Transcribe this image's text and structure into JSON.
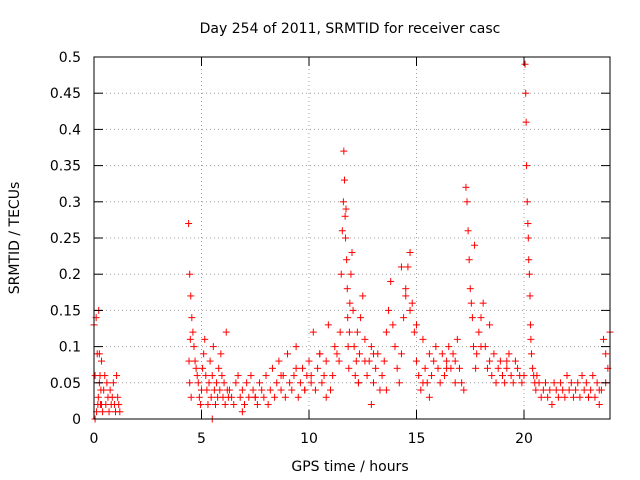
{
  "chart_data": {
    "type": "scatter",
    "title": "Day 254 of 2011, SRMTID for receiver casc",
    "xlabel": "GPS time / hours",
    "ylabel": "SRMTID / TECUs",
    "xlim": [
      0,
      24
    ],
    "ylim": [
      0,
      0.5
    ],
    "xticks": [
      0,
      5,
      10,
      15,
      20
    ],
    "xtick_labels": [
      "0",
      "5",
      "10",
      "15",
      "20"
    ],
    "yticks": [
      0,
      0.05,
      0.1,
      0.15,
      0.2,
      0.25,
      0.3,
      0.35,
      0.4,
      0.45,
      0.5
    ],
    "ytick_labels": [
      "0",
      "0.05",
      "0.1",
      "0.15",
      "0.2",
      "0.25",
      "0.3",
      "0.35",
      "0.4",
      "0.45",
      "0.5"
    ],
    "grid": true,
    "marker": "plus",
    "color": "#ff0000",
    "series": [
      {
        "name": "SRMTID",
        "x": [
          0.0,
          0.05,
          0.1,
          0.15,
          0.2,
          0.25,
          0.3,
          0.35,
          0.4,
          0.45,
          0.5,
          0.55,
          0.6,
          0.65,
          0.7,
          0.75,
          0.8,
          0.85,
          0.9,
          0.95,
          1.0,
          1.05,
          1.1,
          1.15,
          1.2,
          0.22,
          0.25,
          0.28,
          0.32,
          0.35,
          0.05,
          0.12,
          0.18,
          4.4,
          4.45,
          4.5,
          4.55,
          4.6,
          4.65,
          4.7,
          4.75,
          4.8,
          4.85,
          4.9,
          4.95,
          5.0,
          5.05,
          5.1,
          5.15,
          5.2,
          5.25,
          5.3,
          5.35,
          5.4,
          5.45,
          5.5,
          5.55,
          5.6,
          5.65,
          5.7,
          5.75,
          5.8,
          5.85,
          5.9,
          5.95,
          6.0,
          6.05,
          6.1,
          6.15,
          6.2,
          6.25,
          4.42,
          4.45,
          4.48,
          4.52,
          6.3,
          6.4,
          6.5,
          6.6,
          6.7,
          6.8,
          6.9,
          7.0,
          7.1,
          7.2,
          7.3,
          7.4,
          7.5,
          7.6,
          7.7,
          7.8,
          7.9,
          8.0,
          8.1,
          8.2,
          8.3,
          8.4,
          8.5,
          8.6,
          8.7,
          8.8,
          8.9,
          9.0,
          9.1,
          9.2,
          9.3,
          9.4,
          9.5,
          9.6,
          9.7,
          9.8,
          9.9,
          10.0,
          10.1,
          10.2,
          10.3,
          10.4,
          10.5,
          10.6,
          10.7,
          10.8,
          10.9,
          11.0,
          11.1,
          11.2,
          11.3,
          11.4,
          11.45,
          11.5,
          11.55,
          11.6,
          11.62,
          11.65,
          11.68,
          11.7,
          11.72,
          11.75,
          11.78,
          11.8,
          11.82,
          11.85,
          11.88,
          11.9,
          11.95,
          12.0,
          12.05,
          12.1,
          12.15,
          12.2,
          12.25,
          12.3,
          12.35,
          12.4,
          12.5,
          12.6,
          12.7,
          12.8,
          12.9,
          13.0,
          13.1,
          13.2,
          13.3,
          13.4,
          13.5,
          13.6,
          13.7,
          13.8,
          13.9,
          14.0,
          14.1,
          14.2,
          14.3,
          14.4,
          14.5,
          14.6,
          14.7,
          14.8,
          14.9,
          15.0,
          15.1,
          15.2,
          15.3,
          15.4,
          15.5,
          15.6,
          15.7,
          15.8,
          15.9,
          16.0,
          16.1,
          16.2,
          16.3,
          16.4,
          16.5,
          16.6,
          16.7,
          16.8,
          16.9,
          17.0,
          17.1,
          17.2,
          17.3,
          17.35,
          17.4,
          17.45,
          17.5,
          17.55,
          17.6,
          17.65,
          17.7,
          17.75,
          17.8,
          17.9,
          18.0,
          18.1,
          18.2,
          18.3,
          18.4,
          18.5,
          18.6,
          18.7,
          18.8,
          18.9,
          19.0,
          19.1,
          19.2,
          19.3,
          19.4,
          19.5,
          19.6,
          19.7,
          19.8,
          19.9,
          20.0,
          20.05,
          20.08,
          20.1,
          20.12,
          20.15,
          20.18,
          20.2,
          20.22,
          20.25,
          20.28,
          20.3,
          20.32,
          20.35,
          20.4,
          20.45,
          20.5,
          20.55,
          20.6,
          20.7,
          20.8,
          20.9,
          21.0,
          21.1,
          21.2,
          21.3,
          21.4,
          21.5,
          21.6,
          21.7,
          21.8,
          21.9,
          22.0,
          22.1,
          22.2,
          22.3,
          22.4,
          22.5,
          22.6,
          22.7,
          22.8,
          22.9,
          23.0,
          23.1,
          23.2,
          23.3,
          23.4,
          23.5,
          23.6,
          23.7,
          23.8,
          23.9,
          24.0,
          14.3,
          14.5,
          14.7,
          15.0,
          15.3,
          13.0,
          12.3,
          12.6,
          9.4,
          9.8,
          10.1,
          10.5,
          10.8,
          8.7,
          7.5,
          6.9,
          5.5,
          5.0,
          18.0,
          18.4,
          19.2,
          22.0,
          23.0,
          23.5,
          23.8,
          16.4,
          16.8,
          15.6,
          13.6,
          12.9
        ],
        "y": [
          0.13,
          0.06,
          0.14,
          0.09,
          0.03,
          0.05,
          0.02,
          0.08,
          0.01,
          0.04,
          0.06,
          0.02,
          0.05,
          0.03,
          0.01,
          0.04,
          0.02,
          0.03,
          0.05,
          0.02,
          0.01,
          0.06,
          0.03,
          0.02,
          0.01,
          0.15,
          0.09,
          0.06,
          0.04,
          0.02,
          0.0,
          0.01,
          0.02,
          0.27,
          0.2,
          0.17,
          0.14,
          0.12,
          0.1,
          0.08,
          0.07,
          0.06,
          0.05,
          0.03,
          0.02,
          0.04,
          0.07,
          0.09,
          0.11,
          0.06,
          0.04,
          0.02,
          0.05,
          0.08,
          0.03,
          0.06,
          0.1,
          0.04,
          0.02,
          0.05,
          0.03,
          0.07,
          0.04,
          0.09,
          0.06,
          0.03,
          0.05,
          0.02,
          0.12,
          0.04,
          0.03,
          0.08,
          0.05,
          0.11,
          0.03,
          0.04,
          0.03,
          0.02,
          0.05,
          0.06,
          0.03,
          0.04,
          0.02,
          0.05,
          0.03,
          0.06,
          0.04,
          0.03,
          0.02,
          0.05,
          0.04,
          0.03,
          0.06,
          0.02,
          0.04,
          0.07,
          0.03,
          0.05,
          0.08,
          0.04,
          0.06,
          0.03,
          0.09,
          0.05,
          0.04,
          0.06,
          0.1,
          0.03,
          0.05,
          0.07,
          0.04,
          0.06,
          0.08,
          0.05,
          0.12,
          0.04,
          0.07,
          0.09,
          0.05,
          0.06,
          0.08,
          0.13,
          0.04,
          0.06,
          0.1,
          0.09,
          0.08,
          0.12,
          0.2,
          0.26,
          0.3,
          0.37,
          0.33,
          0.28,
          0.25,
          0.29,
          0.22,
          0.18,
          0.14,
          0.1,
          0.07,
          0.12,
          0.16,
          0.2,
          0.23,
          0.15,
          0.1,
          0.06,
          0.08,
          0.12,
          0.05,
          0.09,
          0.14,
          0.17,
          0.11,
          0.06,
          0.08,
          0.1,
          0.05,
          0.07,
          0.09,
          0.04,
          0.06,
          0.08,
          0.12,
          0.15,
          0.19,
          0.13,
          0.1,
          0.07,
          0.05,
          0.09,
          0.14,
          0.18,
          0.21,
          0.23,
          0.16,
          0.12,
          0.08,
          0.06,
          0.04,
          0.05,
          0.07,
          0.05,
          0.09,
          0.06,
          0.08,
          0.1,
          0.07,
          0.05,
          0.09,
          0.06,
          0.08,
          0.1,
          0.07,
          0.09,
          0.08,
          0.11,
          0.07,
          0.05,
          0.04,
          0.32,
          0.3,
          0.26,
          0.22,
          0.18,
          0.16,
          0.14,
          0.1,
          0.24,
          0.07,
          0.09,
          0.12,
          0.14,
          0.16,
          0.1,
          0.07,
          0.08,
          0.06,
          0.09,
          0.05,
          0.07,
          0.08,
          0.06,
          0.05,
          0.07,
          0.09,
          0.06,
          0.05,
          0.08,
          0.07,
          0.06,
          0.05,
          0.06,
          0.49,
          0.45,
          0.41,
          0.35,
          0.3,
          0.27,
          0.25,
          0.22,
          0.2,
          0.17,
          0.13,
          0.11,
          0.09,
          0.07,
          0.06,
          0.05,
          0.04,
          0.06,
          0.05,
          0.03,
          0.04,
          0.05,
          0.03,
          0.04,
          0.02,
          0.05,
          0.04,
          0.03,
          0.05,
          0.04,
          0.03,
          0.06,
          0.04,
          0.05,
          0.03,
          0.04,
          0.05,
          0.03,
          0.06,
          0.04,
          0.05,
          0.03,
          0.04,
          0.06,
          0.03,
          0.05,
          0.02,
          0.04,
          0.11,
          0.05,
          0.07,
          0.12,
          0.21,
          0.17,
          0.15,
          0.13,
          0.11,
          0.09,
          0.05,
          0.08,
          0.07,
          0.04,
          0.06,
          0.09,
          0.03,
          0.06,
          0.03,
          0.01,
          0.0,
          0.04,
          0.1,
          0.13,
          0.08,
          0.06,
          0.03,
          0.04,
          0.09,
          0.07,
          0.05,
          0.03,
          0.04,
          0.02
        ]
      }
    ]
  }
}
